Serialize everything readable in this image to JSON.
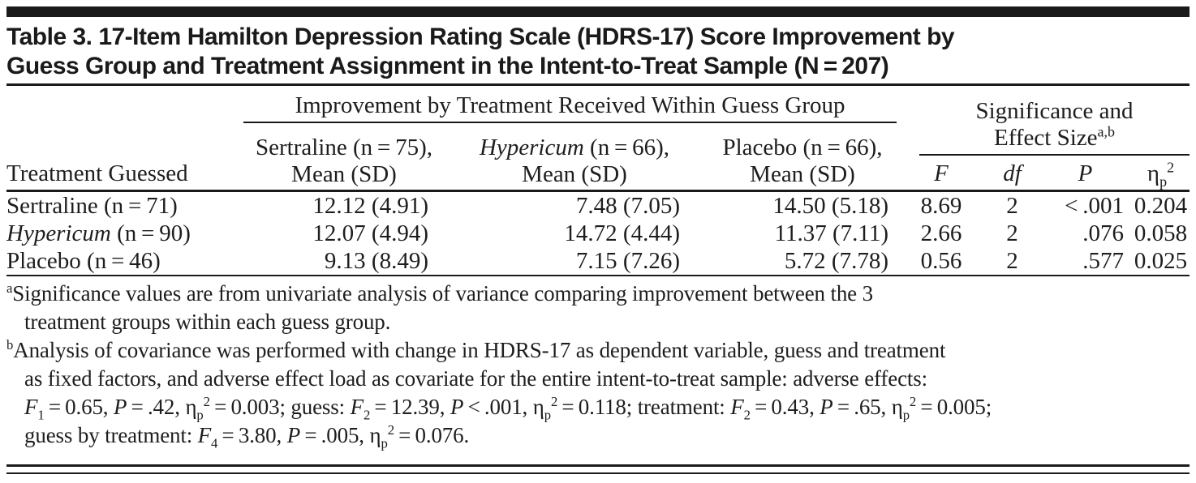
{
  "title": {
    "lines": [
      "Table 3. 17-Item Hamilton Depression Rating Scale (HDRS-17) Score Improvement by",
      "Guess Group and Treatment Assignment in the Intent-to-Treat Sample (N = 207)"
    ]
  },
  "table": {
    "row_header_label": "Treatment Guessed",
    "group1_label": "Improvement by Treatment Received Within Guess Group",
    "group2": {
      "line1": "Significance and",
      "line2": [
        {
          "t": "Effect Size"
        },
        {
          "t": "a,b",
          "s": "sup"
        }
      ]
    },
    "columns": {
      "sertraline": {
        "line1": "Sertraline (n = 75),",
        "line2": "Mean (SD)"
      },
      "hypericum": {
        "line1": [
          {
            "t": "Hypericum",
            "s": "i"
          },
          {
            "t": " (n = 66),"
          }
        ],
        "line2": "Mean (SD)"
      },
      "placebo": {
        "line1": "Placebo (n = 66),",
        "line2": "Mean (SD)"
      },
      "stat_f": [
        {
          "t": "F",
          "s": "i"
        }
      ],
      "stat_df": [
        {
          "t": "df",
          "s": "i"
        }
      ],
      "stat_p": [
        {
          "t": "P",
          "s": "i"
        }
      ],
      "stat_eta": [
        {
          "t": "η"
        },
        {
          "t": "p",
          "s": "sub"
        },
        {
          "t": "2",
          "s": "sup"
        }
      ]
    },
    "rows": [
      {
        "label": [
          {
            "t": "Sertraline (n = 71)"
          }
        ],
        "sertraline": "12.12 (4.91)",
        "hypericum": "7.48 (7.05)",
        "placebo": "14.50 (5.18)",
        "F": "8.69",
        "df": "2",
        "P": "< .001",
        "eta": "0.204"
      },
      {
        "label": [
          {
            "t": "Hypericum",
            "s": "i"
          },
          {
            "t": " (n = 90)"
          }
        ],
        "sertraline": "12.07 (4.94)",
        "hypericum": "14.72 (4.44)",
        "placebo": "11.37 (7.11)",
        "F": "2.66",
        "df": "2",
        "P": ".076",
        "eta": "0.058"
      },
      {
        "label": [
          {
            "t": "Placebo (n = 46)"
          }
        ],
        "sertraline": "9.13 (8.49)",
        "hypericum": "7.15 (7.26)",
        "placebo": "5.72 (7.78)",
        "F": "0.56",
        "df": "2",
        "P": ".577",
        "eta": "0.025"
      }
    ]
  },
  "footnotes": [
    {
      "lines": [
        [
          {
            "t": "a",
            "s": "sup"
          },
          {
            "t": "Significance values are from univariate analysis of variance comparing improvement between the 3"
          }
        ],
        [
          {
            "t": "treatment groups within each guess group."
          }
        ]
      ]
    },
    {
      "lines": [
        [
          {
            "t": "b",
            "s": "sup"
          },
          {
            "t": "Analysis of covariance was performed with change in HDRS-17 as dependent variable, guess and treatment"
          }
        ],
        [
          {
            "t": "as fixed factors, and adverse effect load as covariate for the entire intent-to-treat sample: adverse effects:"
          }
        ],
        [
          {
            "t": "F",
            "s": "i"
          },
          {
            "t": "1",
            "s": "sub"
          },
          {
            "t": " = 0.65, "
          },
          {
            "t": "P",
            "s": "i"
          },
          {
            "t": " = .42, η"
          },
          {
            "t": "p",
            "s": "sub"
          },
          {
            "t": "2",
            "s": "sup"
          },
          {
            "t": " = 0.003; guess: "
          },
          {
            "t": "F",
            "s": "i"
          },
          {
            "t": "2",
            "s": "sub"
          },
          {
            "t": " = 12.39, "
          },
          {
            "t": "P",
            "s": "i"
          },
          {
            "t": " < .001, η"
          },
          {
            "t": "p",
            "s": "sub"
          },
          {
            "t": "2",
            "s": "sup"
          },
          {
            "t": " = 0.118; treatment: "
          },
          {
            "t": "F",
            "s": "i"
          },
          {
            "t": "2",
            "s": "sub"
          },
          {
            "t": " = 0.43, "
          },
          {
            "t": "P",
            "s": "i"
          },
          {
            "t": " = .65, η"
          },
          {
            "t": "p",
            "s": "sub"
          },
          {
            "t": "2",
            "s": "sup"
          },
          {
            "t": " = 0.005;"
          }
        ],
        [
          {
            "t": "guess by treatment: "
          },
          {
            "t": "F",
            "s": "i"
          },
          {
            "t": "4",
            "s": "sub"
          },
          {
            "t": " = 3.80, "
          },
          {
            "t": "P",
            "s": "i"
          },
          {
            "t": " = .005, η"
          },
          {
            "t": "p",
            "s": "sub"
          },
          {
            "t": "2",
            "s": "sup"
          },
          {
            "t": " = 0.076."
          }
        ]
      ]
    }
  ],
  "colors": {
    "text": "#1e1e1e",
    "rule": "#1a1a1a",
    "bar": "#1a1a1a",
    "background": "#ffffff"
  }
}
